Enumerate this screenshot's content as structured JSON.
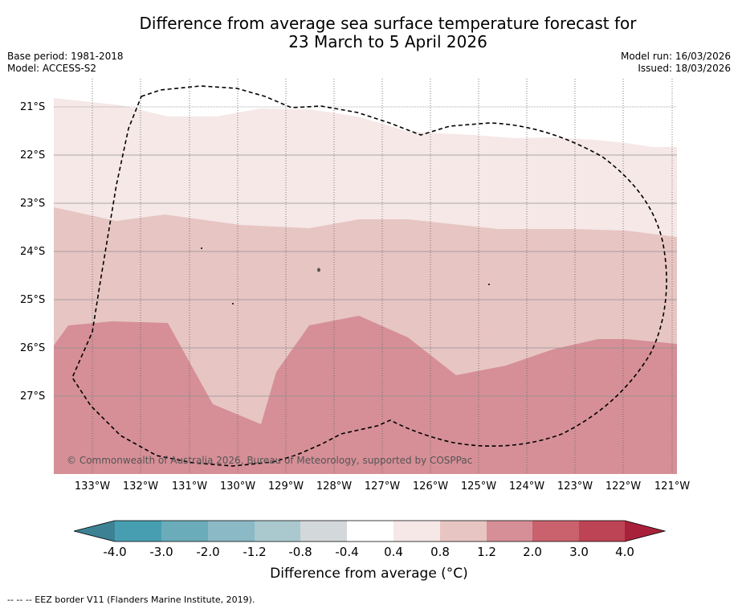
{
  "title": {
    "line1": "Difference from average sea surface temperature forecast for",
    "line2": "23 March to 5 April 2026"
  },
  "meta": {
    "base_period": "Base period: 1981-2018",
    "model": "Model: ACCESS-S2",
    "model_run": "Model run: 16/03/2026",
    "issued": "Issued: 18/03/2026"
  },
  "map": {
    "latitude_labels": [
      "21°S",
      "22°S",
      "23°S",
      "24°S",
      "25°S",
      "26°S",
      "27°S"
    ],
    "longitude_labels": [
      "133°W",
      "132°W",
      "131°W",
      "130°W",
      "129°W",
      "128°W",
      "127°W",
      "126°W",
      "125°W",
      "124°W",
      "123°W",
      "122°W",
      "121°W"
    ],
    "copyright": "© Commonwealth of Australia 2026, Bureau of Meteorology, supported by COSPPac",
    "colors": {
      "band_0_4_to_0_8": "#f5e8e7",
      "band_0_8_to_1_2": "#e7c5c3",
      "band_1_2_to_2_0": "#d68f97",
      "eez_line": "#000000"
    }
  },
  "colorbar": {
    "ticks": [
      "-4.0",
      "-3.0",
      "-2.0",
      "-1.2",
      "-0.8",
      "-0.4",
      "0.4",
      "0.8",
      "1.2",
      "2.0",
      "3.0",
      "4.0"
    ],
    "colors": [
      "#3c8294",
      "#479eb1",
      "#6bacbb",
      "#8bb9c5",
      "#a9c9cf",
      "#d3d8da",
      "#ffffff",
      "#f5e8e7",
      "#e7c5c3",
      "#d68f97",
      "#c9626c",
      "#bd4454",
      "#a8213a"
    ],
    "label": "Difference from average (°C)"
  },
  "footnote": "--  --  -- EEZ border V11 (Flanders Marine Institute, 2019)."
}
